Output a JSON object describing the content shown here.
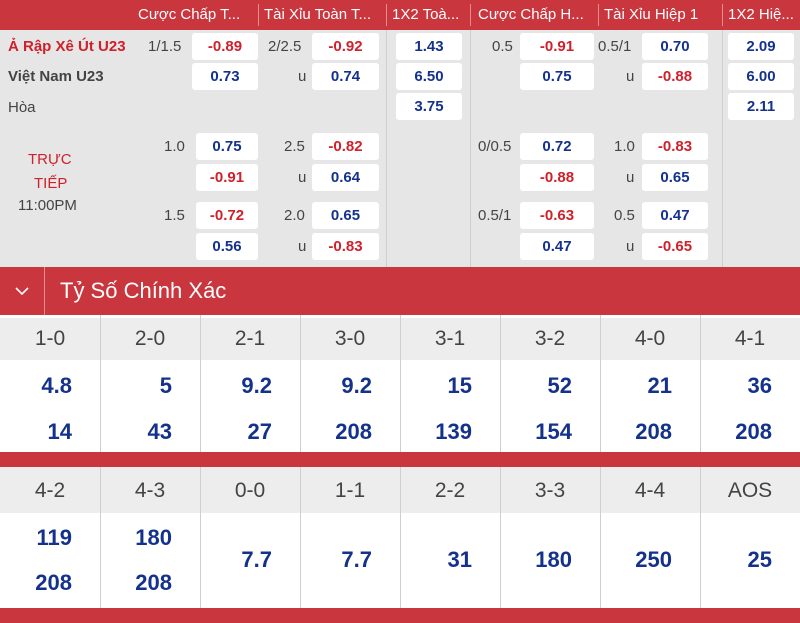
{
  "header": {
    "cols": [
      "Cược Chấp T...",
      "Tài Xỉu Toàn T...",
      "1X2 Toà...",
      "Cược Chấp H...",
      "Tài Xỉu Hiệp 1",
      "1X2 Hiệ..."
    ]
  },
  "match": {
    "home": "Ả Rập Xê Út U23",
    "away": "Việt Nam U23",
    "draw": "Hòa",
    "status_line1": "TRỰC",
    "status_line2": "TIẾP",
    "time": "11:00PM"
  },
  "main_line": {
    "ah_line": "1/1.5",
    "ah_home": "-0.89",
    "ah_away": "0.73",
    "ou_line": "2/2.5",
    "ou_over": "-0.92",
    "ou_under_label": "u",
    "ou_under": "0.74",
    "x12_home": "1.43",
    "x12_away": "6.50",
    "x12_draw": "3.75",
    "h1_ah_line": "0.5",
    "h1_ah_home": "-0.91",
    "h1_ah_away": "0.75",
    "h1_ou_line": "0.5/1",
    "h1_ou_over": "0.70",
    "h1_ou_under_label": "u",
    "h1_ou_under": "-0.88",
    "h1_x12_home": "2.09",
    "h1_x12_away": "6.00",
    "h1_x12_draw": "2.11"
  },
  "alt_line_1": {
    "ah_line": "1.0",
    "ah_home": "0.75",
    "ah_away": "-0.91",
    "ou_line": "2.5",
    "ou_over": "-0.82",
    "ou_under_label": "u",
    "ou_under": "0.64",
    "h1_ah_line": "0/0.5",
    "h1_ah_home": "0.72",
    "h1_ah_away": "-0.88",
    "h1_ou_line": "1.0",
    "h1_ou_over": "-0.83",
    "h1_ou_under_label": "u",
    "h1_ou_under": "0.65"
  },
  "alt_line_2": {
    "ah_line": "1.5",
    "ah_home": "-0.72",
    "ah_away": "0.56",
    "ou_line": "2.0",
    "ou_over": "0.65",
    "ou_under_label": "u",
    "ou_under": "-0.83",
    "h1_ah_line": "0.5/1",
    "h1_ah_home": "-0.63",
    "h1_ah_away": "0.47",
    "h1_ou_line": "0.5",
    "h1_ou_over": "0.47",
    "h1_ou_under_label": "u",
    "h1_ou_under": "-0.65"
  },
  "correct_score": {
    "title": "Tỷ Số Chính Xác",
    "row1": [
      {
        "score": "1-0",
        "home": "4.8",
        "away": "14"
      },
      {
        "score": "2-0",
        "home": "5",
        "away": "43"
      },
      {
        "score": "2-1",
        "home": "9.2",
        "away": "27"
      },
      {
        "score": "3-0",
        "home": "9.2",
        "away": "208"
      },
      {
        "score": "3-1",
        "home": "15",
        "away": "139"
      },
      {
        "score": "3-2",
        "home": "52",
        "away": "154"
      },
      {
        "score": "4-0",
        "home": "21",
        "away": "208"
      },
      {
        "score": "4-1",
        "home": "36",
        "away": "208"
      }
    ],
    "row2_pairs": [
      {
        "score": "4-2",
        "home": "119",
        "away": "208"
      },
      {
        "score": "4-3",
        "home": "180",
        "away": "208"
      }
    ],
    "row2_single": [
      {
        "score": "0-0",
        "value": "7.7"
      },
      {
        "score": "1-1",
        "value": "7.7"
      },
      {
        "score": "2-2",
        "value": "31"
      },
      {
        "score": "3-3",
        "value": "180"
      },
      {
        "score": "4-4",
        "value": "250"
      },
      {
        "score": "AOS",
        "value": "25"
      }
    ]
  },
  "colors": {
    "accent": "#c9363e",
    "positive": "#14328c",
    "negative": "#d0202a"
  }
}
